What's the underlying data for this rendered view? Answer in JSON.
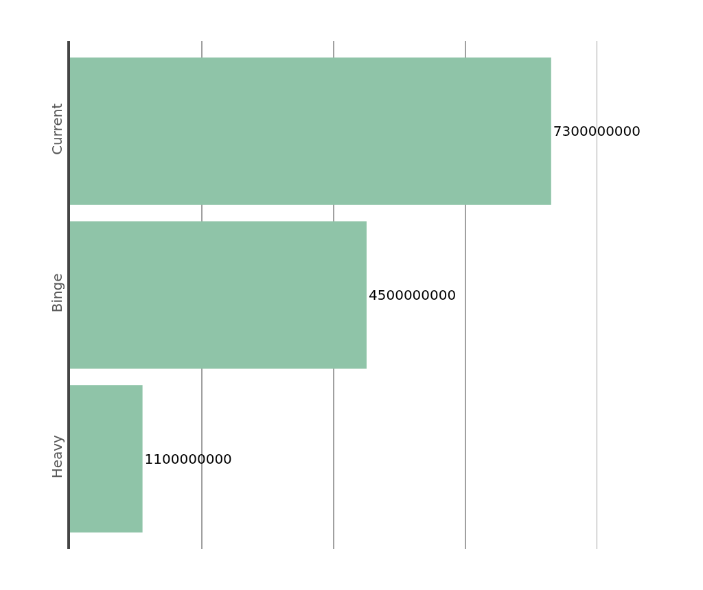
{
  "chart_data": {
    "type": "bar",
    "orientation": "horizontal",
    "categories": [
      "Current",
      "Binge",
      "Heavy"
    ],
    "values": [
      7300000000,
      4500000000,
      1100000000
    ],
    "color": "#8fc4a8",
    "xlim": [
      0,
      8000000000
    ],
    "xticks": [
      {
        "value": 0,
        "label": null
      },
      {
        "value": 2000000000,
        "label": null
      },
      {
        "value": 4000000000,
        "label": null
      },
      {
        "value": 6000000000,
        "label": null
      },
      {
        "value": 8000000000,
        "label": null
      }
    ],
    "grid": "x",
    "data_labels": true,
    "tick_labels": "y"
  }
}
